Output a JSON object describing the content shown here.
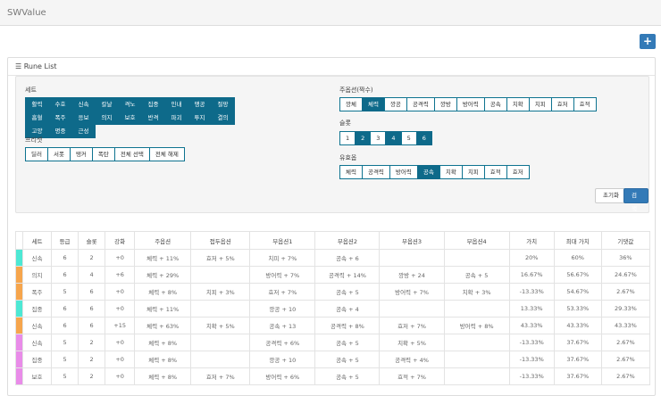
{
  "app": {
    "title": "SWValue",
    "add_label": "+"
  },
  "panel": {
    "title": "Rune List"
  },
  "filter": {
    "set_label": "세트",
    "sets": [
      "활력",
      "수호",
      "신속",
      "칼날",
      "격노",
      "집중",
      "인내",
      "맹공",
      "절망",
      "흡혈",
      "폭주",
      "응보",
      "의지",
      "보호",
      "반격",
      "파괴",
      "투지",
      "결의",
      "고양",
      "명중",
      "근성"
    ],
    "preset_label": "프리셋",
    "presets": [
      "딜러",
      "서폿",
      "탱커",
      "폭탄",
      "전체 선택",
      "전체 해제"
    ],
    "main_label": "주옵션(짝수)",
    "mains": [
      {
        "t": "깡체",
        "on": false
      },
      {
        "t": "체력",
        "on": true
      },
      {
        "t": "깡공",
        "on": false
      },
      {
        "t": "공격력",
        "on": false
      },
      {
        "t": "깡방",
        "on": false
      },
      {
        "t": "방어력",
        "on": false
      },
      {
        "t": "공속",
        "on": false
      },
      {
        "t": "치확",
        "on": false
      },
      {
        "t": "치피",
        "on": false
      },
      {
        "t": "효저",
        "on": false
      },
      {
        "t": "효적",
        "on": false
      }
    ],
    "slot_label": "슬롯",
    "slots": [
      {
        "t": "1",
        "on": false
      },
      {
        "t": "2",
        "on": true
      },
      {
        "t": "3",
        "on": false
      },
      {
        "t": "4",
        "on": true
      },
      {
        "t": "5",
        "on": false
      },
      {
        "t": "6",
        "on": true
      }
    ],
    "valid_label": "유효옵",
    "valids": [
      {
        "t": "체력",
        "on": false
      },
      {
        "t": "공격력",
        "on": false
      },
      {
        "t": "방어력",
        "on": false
      },
      {
        "t": "공속",
        "on": true
      },
      {
        "t": "치확",
        "on": false
      },
      {
        "t": "치피",
        "on": false
      },
      {
        "t": "효적",
        "on": false
      },
      {
        "t": "효저",
        "on": false
      }
    ],
    "reset_label": "초기화",
    "search_label": "검색"
  },
  "table": {
    "headers": [
      "세트",
      "등급",
      "슬롯",
      "강화",
      "주옵션",
      "접두옵션",
      "부옵션1",
      "부옵션2",
      "부옵션3",
      "부옵션4",
      "가치",
      "최대 가치",
      "기댓값"
    ],
    "rows": [
      {
        "color": "#4de8d4",
        "cells": [
          "신속",
          "6",
          "2",
          "+0",
          "체력 + 11%",
          "효저 + 5%",
          "치피 + 7%",
          "공속 + 6",
          "",
          "",
          "20%",
          "60%",
          "36%"
        ]
      },
      {
        "color": "#f6a54c",
        "cells": [
          "의지",
          "6",
          "4",
          "+6",
          "체력 + 29%",
          "",
          "방어력 + 7%",
          "공격력 + 14%",
          "깡방 + 24",
          "공속 + 5",
          "16.67%",
          "56.67%",
          "24.67%"
        ]
      },
      {
        "color": "#f6a54c",
        "cells": [
          "폭주",
          "5",
          "6",
          "+0",
          "체력 + 8%",
          "치피 + 3%",
          "효저 + 7%",
          "공속 + 5",
          "방어력 + 7%",
          "치확 + 3%",
          "-13.33%",
          "54.67%",
          "2.67%"
        ]
      },
      {
        "color": "#4de8d4",
        "cells": [
          "집중",
          "6",
          "6",
          "+0",
          "체력 + 11%",
          "",
          "깡공 + 10",
          "공속 + 4",
          "",
          "",
          "13.33%",
          "53.33%",
          "29.33%"
        ]
      },
      {
        "color": "#f6a54c",
        "cells": [
          "신속",
          "6",
          "6",
          "+15",
          "체력 + 63%",
          "치확 + 5%",
          "공속 + 13",
          "공격력 + 8%",
          "효저 + 7%",
          "방어력 + 8%",
          "43.33%",
          "43.33%",
          "43.33%"
        ]
      },
      {
        "color": "#e98ce9",
        "cells": [
          "신속",
          "5",
          "2",
          "+0",
          "체력 + 8%",
          "",
          "공격력 + 6%",
          "공속 + 5",
          "치확 + 5%",
          "",
          "-13.33%",
          "37.67%",
          "2.67%"
        ]
      },
      {
        "color": "#e98ce9",
        "cells": [
          "집중",
          "5",
          "2",
          "+0",
          "체력 + 8%",
          "",
          "깡공 + 10",
          "공속 + 5",
          "공격력 + 4%",
          "",
          "-13.33%",
          "37.67%",
          "2.67%"
        ]
      },
      {
        "color": "#e98ce9",
        "cells": [
          "보호",
          "5",
          "2",
          "+0",
          "체력 + 8%",
          "효저 + 7%",
          "방어력 + 6%",
          "공속 + 5",
          "효적 + 7%",
          "",
          "-13.33%",
          "37.67%",
          "2.67%"
        ]
      }
    ]
  }
}
